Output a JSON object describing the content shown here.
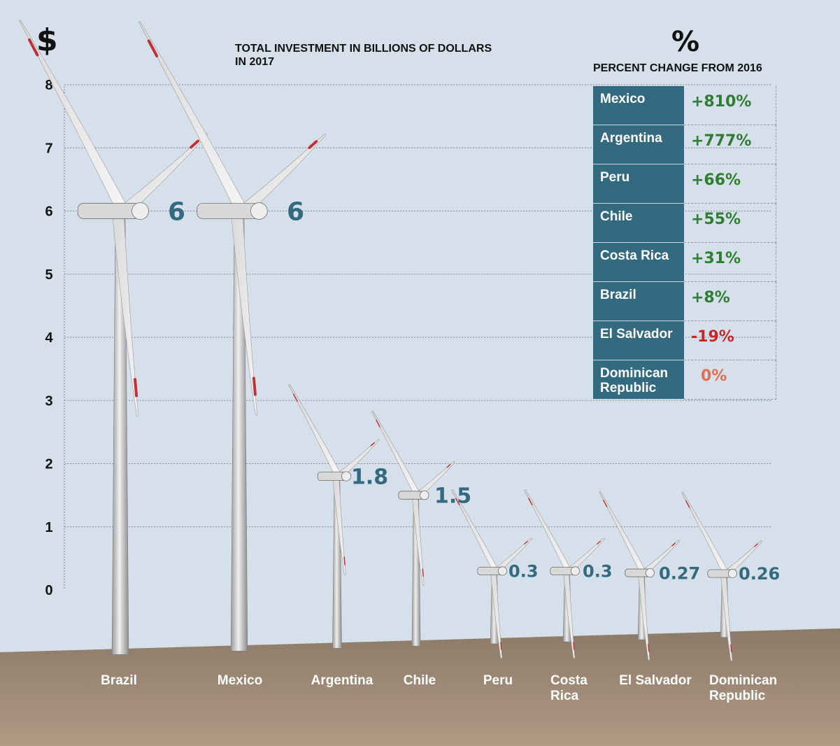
{
  "header": {
    "currency_symbol": "$",
    "title_line1": "TOTAL INVESTMENT IN BILLIONS OF DOLLARS",
    "title_line2": "IN 2017"
  },
  "percent_panel": {
    "symbol": "%",
    "heading": "PERCENT CHANGE FROM 2016",
    "rows": [
      {
        "country": "Mexico",
        "change": "+810%",
        "sign": "pos"
      },
      {
        "country": "Argentina",
        "change": "+777%",
        "sign": "pos"
      },
      {
        "country": "Peru",
        "change": "+66%",
        "sign": "pos"
      },
      {
        "country": "Chile",
        "change": "+55%",
        "sign": "pos"
      },
      {
        "country": "Costa Rica",
        "change": "+31%",
        "sign": "pos"
      },
      {
        "country": "Brazil",
        "change": "+8%",
        "sign": "pos"
      },
      {
        "country": "El Salvador",
        "change": "-19%",
        "sign": "neg"
      },
      {
        "country": "Dominican Republic",
        "change": "0%",
        "sign": "zero"
      }
    ]
  },
  "colors": {
    "background": "#d5e0ea",
    "ground": "#8b7a68",
    "value_label": "#336a7f",
    "table_header": "#336a7f",
    "positive": "#2e7d32",
    "negative": "#c62828",
    "zero": "#e07050",
    "blade_tip": "#c0303a"
  },
  "chart_data": {
    "type": "bar",
    "title": "TOTAL INVESTMENT IN BILLIONS OF DOLLARS IN 2017",
    "xlabel": "",
    "ylabel": "$",
    "ylim": [
      0,
      8
    ],
    "yticks": [
      0,
      1,
      2,
      3,
      4,
      5,
      6,
      7,
      8
    ],
    "grid": true,
    "categories": [
      "Brazil",
      "Mexico",
      "Argentina",
      "Chile",
      "Peru",
      "Costa Rica",
      "El Salvador",
      "Dominican Republic"
    ],
    "tick_labels": [
      [
        "Brazil"
      ],
      [
        "Mexico"
      ],
      [
        "Argentina"
      ],
      [
        "Chile"
      ],
      [
        "Peru"
      ],
      [
        "Costa",
        "Rica"
      ],
      [
        "El Salvador"
      ],
      [
        "Dominican",
        "Republic"
      ]
    ],
    "values": [
      6,
      6,
      1.8,
      1.5,
      0.3,
      0.3,
      0.27,
      0.26
    ],
    "value_labels": [
      "6",
      "6",
      "1.8",
      "1.5",
      "0.3",
      "0.3",
      "0.27",
      "0.26"
    ],
    "mark": "wind-turbine"
  }
}
